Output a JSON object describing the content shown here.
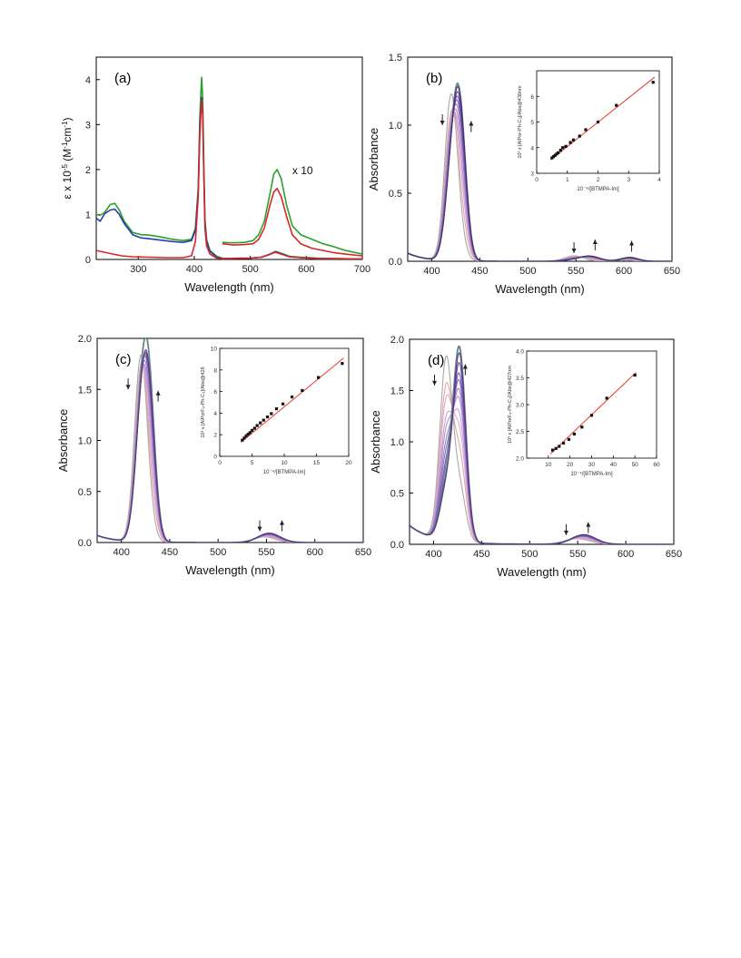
{
  "chart_data": [
    {
      "panel": "(a)",
      "type": "line",
      "xlabel": "Wavelength (nm)",
      "ylabel_parts": [
        "ε x 10",
        "-5",
        " (M",
        "-1",
        "cm",
        "-1",
        ")"
      ],
      "xlim": [
        225,
        700
      ],
      "ylim": [
        0,
        4.5
      ],
      "xticks": [
        300,
        400,
        500,
        600,
        700
      ],
      "yticks": [
        0,
        1,
        2,
        3,
        4
      ],
      "annotations": [
        {
          "text": "x 10",
          "x": 575,
          "y": 1.9
        }
      ],
      "series": [
        {
          "color": "#2ca02c",
          "x": [
            225,
            232,
            240,
            250,
            258,
            266,
            275,
            290,
            305,
            320,
            340,
            360,
            380,
            395,
            402,
            407,
            410,
            413,
            415,
            417,
            419,
            422,
            428,
            440,
            450
          ],
          "y": [
            1.0,
            0.98,
            1.05,
            1.22,
            1.25,
            1.1,
            0.85,
            0.6,
            0.55,
            0.54,
            0.5,
            0.45,
            0.42,
            0.45,
            0.7,
            1.6,
            3.2,
            4.05,
            3.6,
            2.2,
            0.9,
            0.45,
            0.2,
            0.07,
            0.03
          ]
        },
        {
          "color": "#2ca02c",
          "x": [
            450,
            470,
            490,
            505,
            515,
            525,
            535,
            542,
            548,
            555,
            565,
            575,
            590,
            610,
            630,
            650,
            670,
            700
          ],
          "y": [
            0.38,
            0.37,
            0.38,
            0.42,
            0.55,
            0.85,
            1.45,
            1.9,
            2.0,
            1.8,
            1.2,
            0.75,
            0.55,
            0.45,
            0.35,
            0.28,
            0.2,
            0.12
          ]
        },
        {
          "color": "#2ca02c",
          "x": [
            450,
            500,
            520,
            535,
            545,
            555,
            570,
            590,
            620,
            700
          ],
          "y": [
            0.02,
            0.03,
            0.05,
            0.12,
            0.18,
            0.14,
            0.07,
            0.05,
            0.03,
            0.01
          ]
        },
        {
          "color": "#2b3aa8",
          "x": [
            225,
            232,
            240,
            250,
            258,
            266,
            275,
            290,
            305,
            320,
            340,
            360,
            380,
            395,
            402,
            407,
            410,
            413,
            415,
            417,
            419,
            422,
            428,
            440,
            450
          ],
          "y": [
            0.92,
            0.85,
            1.02,
            1.1,
            1.12,
            1.0,
            0.8,
            0.55,
            0.48,
            0.46,
            0.43,
            0.4,
            0.38,
            0.42,
            0.65,
            1.5,
            3.0,
            3.6,
            3.3,
            2.0,
            0.8,
            0.4,
            0.18,
            0.05,
            0.02
          ]
        },
        {
          "color": "#2b3aa8",
          "x": [
            450,
            500,
            520,
            535,
            545,
            555,
            570,
            590,
            620,
            700
          ],
          "y": [
            0.02,
            0.03,
            0.05,
            0.11,
            0.17,
            0.13,
            0.06,
            0.04,
            0.02,
            0.01
          ]
        },
        {
          "color": "#d62728",
          "x": [
            225,
            240,
            255,
            270,
            290,
            320,
            350,
            380,
            395,
            402,
            407,
            410,
            413,
            415,
            417,
            419,
            422,
            428,
            440,
            450
          ],
          "y": [
            0.2,
            0.16,
            0.12,
            0.08,
            0.06,
            0.05,
            0.04,
            0.04,
            0.08,
            0.4,
            1.4,
            2.8,
            3.55,
            3.2,
            1.9,
            0.7,
            0.3,
            0.12,
            0.03,
            0.02
          ]
        },
        {
          "color": "#d62728",
          "x": [
            450,
            470,
            490,
            505,
            515,
            525,
            535,
            542,
            548,
            555,
            565,
            575,
            590,
            610,
            630,
            650,
            670,
            700
          ],
          "y": [
            0.35,
            0.32,
            0.33,
            0.35,
            0.45,
            0.7,
            1.2,
            1.5,
            1.58,
            1.4,
            0.95,
            0.55,
            0.35,
            0.25,
            0.2,
            0.15,
            0.12,
            0.08
          ]
        },
        {
          "color": "#d62728",
          "x": [
            450,
            500,
            520,
            535,
            545,
            555,
            570,
            590,
            620,
            700
          ],
          "y": [
            0.02,
            0.03,
            0.05,
            0.12,
            0.16,
            0.12,
            0.06,
            0.04,
            0.02,
            0.01
          ]
        }
      ],
      "inset": null
    },
    {
      "panel": "(b)",
      "type": "line",
      "xlabel": "Wavelength (nm)",
      "ylabel": "Absorbance",
      "xlim": [
        375,
        650
      ],
      "ylim": [
        0,
        1.5
      ],
      "xticks": [
        400,
        450,
        500,
        550,
        600,
        650
      ],
      "yticks": [
        0.0,
        0.5,
        1.0,
        1.5
      ],
      "yfmt": 1,
      "arrows": [
        {
          "x": 411,
          "y": 1.0,
          "dir": "down"
        },
        {
          "x": 441,
          "y": 0.95,
          "dir": "up"
        },
        {
          "x": 548,
          "y": 0.06,
          "dir": "down"
        },
        {
          "x": 570,
          "y": 0.08,
          "dir": "up"
        },
        {
          "x": 608,
          "y": 0.07,
          "dir": "up"
        }
      ],
      "titration": {
        "colors": [
          "#a3a3a3",
          "#e6a0a0",
          "#cfa4c4",
          "#b98ed0",
          "#a37cc8",
          "#8f6bbf",
          "#7b5aaf",
          "#6a4ba3",
          "#5e7f86",
          "#5a3a8a",
          "#4a2a7a"
        ],
        "peaks": [
          {
            "c1": 420,
            "c2": 429,
            "w1": 6.5,
            "w2": 6.5,
            "a1": [
              1.18,
              0.98,
              0.9,
              0.8,
              0.72,
              0.66,
              0.6,
              0.56,
              0.54,
              0.52,
              0.5
            ],
            "a2": [
              0.12,
              0.3,
              0.45,
              0.58,
              0.7,
              0.8,
              0.88,
              0.94,
              1.05,
              1.0,
              1.05
            ]
          },
          {
            "c1": 548,
            "c2": 565,
            "w1": 10,
            "w2": 10,
            "a1": [
              0.04,
              0.035,
              0.03,
              0.025,
              0.02,
              0.018,
              0.015,
              0.013,
              0.012,
              0.011,
              0.01
            ],
            "a2": [
              0.0,
              0.01,
              0.015,
              0.02,
              0.025,
              0.028,
              0.03,
              0.032,
              0.034,
              0.035,
              0.036
            ]
          },
          {
            "c1": 600,
            "c2": 608,
            "w1": 8,
            "w2": 8,
            "a1": [
              0.01,
              0.01,
              0.01,
              0.01,
              0.01,
              0.01,
              0.01,
              0.01,
              0.01,
              0.01,
              0.01
            ],
            "a2": [
              0.0,
              0.005,
              0.008,
              0.01,
              0.012,
              0.014,
              0.016,
              0.018,
              0.02,
              0.02,
              0.022
            ]
          }
        ],
        "uv_base": 0.06,
        "uv_center": 375,
        "uv_width": 18
      },
      "inset": {
        "xlabel": "10⁻⁴/[BTMPA-Im]",
        "ylabel": "10³ x [AlPor-Ph-C₃]/Abs@430nm",
        "xlim": [
          0,
          4
        ],
        "ylim": [
          3,
          7
        ],
        "xticks": [
          0,
          1,
          2,
          3,
          4
        ],
        "yticks": [
          3,
          4,
          5,
          6
        ],
        "points_x": [
          0.5,
          0.55,
          0.6,
          0.65,
          0.7,
          0.78,
          0.85,
          0.95,
          1.1,
          1.2,
          1.4,
          1.6,
          2.0,
          2.6,
          3.8
        ],
        "points_y": [
          3.6,
          3.65,
          3.7,
          3.75,
          3.8,
          3.9,
          4.0,
          4.05,
          4.2,
          4.3,
          4.45,
          4.7,
          5.0,
          5.65,
          6.55
        ],
        "fit": [
          [
            0.45,
            3.52
          ],
          [
            3.85,
            6.75
          ]
        ]
      }
    },
    {
      "panel": "(c)",
      "type": "line",
      "xlabel": "Wavelength (nm)",
      "ylabel": "Absorbance",
      "xlim": [
        375,
        650
      ],
      "ylim": [
        0,
        2.0
      ],
      "xticks": [
        400,
        450,
        500,
        550,
        600,
        650
      ],
      "yticks": [
        0.0,
        0.5,
        1.0,
        1.5,
        2.0
      ],
      "yfmt": 1,
      "arrows": [
        {
          "x": 407,
          "y": 1.5,
          "dir": "down"
        },
        {
          "x": 438,
          "y": 1.38,
          "dir": "up"
        },
        {
          "x": 543,
          "y": 0.11,
          "dir": "down"
        },
        {
          "x": 566,
          "y": 0.11,
          "dir": "up"
        }
      ],
      "titration": {
        "colors": [
          "#a3a3a3",
          "#e6a0a0",
          "#d8a8cf",
          "#c49ad6",
          "#b08ad0",
          "#9c78c6",
          "#8866b8",
          "#7654a8",
          "#5e7f86",
          "#644496",
          "#543684"
        ],
        "peaks": [
          {
            "c1": 420,
            "c2": 428,
            "w1": 6.5,
            "w2": 6.5,
            "a1": [
              1.76,
              1.55,
              1.4,
              1.28,
              1.18,
              1.1,
              1.05,
              1.0,
              0.96,
              0.93,
              0.9
            ],
            "a2": [
              0.15,
              0.4,
              0.6,
              0.78,
              0.92,
              1.05,
              1.15,
              1.22,
              1.45,
              1.3,
              1.35
            ]
          },
          {
            "c1": 548,
            "c2": 554,
            "w1": 11,
            "w2": 11,
            "a1": [
              0.055,
              0.05,
              0.045,
              0.04,
              0.035,
              0.03,
              0.028,
              0.025,
              0.022,
              0.02,
              0.018
            ],
            "a2": [
              0.0,
              0.01,
              0.02,
              0.03,
              0.04,
              0.05,
              0.055,
              0.06,
              0.07,
              0.07,
              0.075
            ]
          }
        ],
        "uv_base": 0.07,
        "uv_center": 375,
        "uv_width": 20
      },
      "inset": {
        "xlabel": "10⁻⁴/[BTMPA-Im]",
        "ylabel": "10³ x [AlPorF₄-Ph-C₃]/Abs@428",
        "xlim": [
          0,
          20
        ],
        "ylim": [
          0,
          10
        ],
        "xticks": [
          0,
          5,
          10,
          15,
          20
        ],
        "yticks": [
          0,
          2,
          4,
          6,
          8,
          10
        ],
        "points_x": [
          3.5,
          3.8,
          4.1,
          4.4,
          4.7,
          5.0,
          5.4,
          5.8,
          6.3,
          6.8,
          7.4,
          8.0,
          8.8,
          9.8,
          11.2,
          12.8,
          15.3,
          19.0
        ],
        "points_y": [
          1.5,
          1.7,
          1.9,
          2.05,
          2.2,
          2.4,
          2.6,
          2.85,
          3.1,
          3.35,
          3.65,
          3.95,
          4.4,
          4.85,
          5.5,
          6.1,
          7.3,
          8.6
        ],
        "fit": [
          [
            3.3,
            1.3
          ],
          [
            19.2,
            9.1
          ]
        ]
      }
    },
    {
      "panel": "(d)",
      "type": "line",
      "xlabel": "Wavelength (nm)",
      "ylabel": "Absorbance",
      "xlim": [
        375,
        650
      ],
      "ylim": [
        0,
        2.0
      ],
      "xticks": [
        400,
        450,
        500,
        550,
        600,
        650
      ],
      "yticks": [
        0.0,
        0.5,
        1.0,
        1.5,
        2.0
      ],
      "yfmt": 1,
      "arrows": [
        {
          "x": 401,
          "y": 1.55,
          "dir": "down"
        },
        {
          "x": 433,
          "y": 1.65,
          "dir": "up"
        },
        {
          "x": 538,
          "y": 0.09,
          "dir": "down"
        },
        {
          "x": 561,
          "y": 0.11,
          "dir": "up"
        }
      ],
      "titration": {
        "colors": [
          "#a3a3a3",
          "#e6a0a0",
          "#d8a8cf",
          "#c49ad6",
          "#b08ad0",
          "#9c78c6",
          "#8866b8",
          "#7654a8",
          "#5e7f86",
          "#644496",
          "#543684"
        ],
        "peaks": [
          {
            "c1": 413,
            "c2": 427,
            "w1": 6.5,
            "w2": 6.5,
            "a1": [
              1.75,
              1.45,
              1.3,
              1.1,
              0.98,
              0.85,
              0.75,
              0.65,
              0.58,
              0.5,
              0.45
            ],
            "a2": [
              0.5,
              0.8,
              1.0,
              1.15,
              1.3,
              1.4,
              1.5,
              1.58,
              1.85,
              1.7,
              1.8
            ]
          },
          {
            "c1": 546,
            "c2": 557,
            "w1": 12,
            "w2": 12,
            "a1": [
              0.04,
              0.035,
              0.03,
              0.026,
              0.022,
              0.018,
              0.015,
              0.012,
              0.01,
              0.008,
              0.006
            ],
            "a2": [
              0.02,
              0.03,
              0.04,
              0.05,
              0.06,
              0.065,
              0.07,
              0.075,
              0.085,
              0.085,
              0.09
            ]
          }
        ],
        "uv_base": 0.15,
        "uv_center": 380,
        "uv_width": 25
      },
      "inset": {
        "xlabel": "10⁻⁴/[BTMPA-Im]",
        "ylabel": "10³ x [AlPorF₄-Ph-C₃]/Abs@427nm",
        "xlim": [
          0,
          60
        ],
        "ylim": [
          2.0,
          4.0
        ],
        "xticks": [
          10,
          20,
          30,
          40,
          50,
          60
        ],
        "yticks": [
          2.0,
          2.5,
          3.0,
          3.5,
          4.0
        ],
        "yfmt": 1,
        "points_x": [
          12,
          13.5,
          15,
          17,
          19.5,
          22,
          25.5,
          30,
          37,
          50
        ],
        "points_y": [
          2.15,
          2.18,
          2.22,
          2.28,
          2.35,
          2.45,
          2.58,
          2.8,
          3.12,
          3.55
        ],
        "fit": [
          [
            11,
            2.08
          ],
          [
            50.5,
            3.6
          ]
        ]
      }
    }
  ]
}
